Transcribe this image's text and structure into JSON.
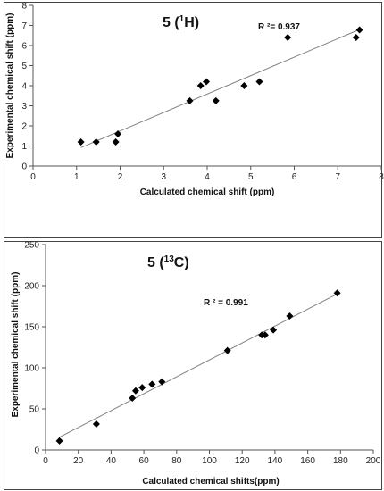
{
  "chart_data": [
    {
      "type": "scatter",
      "title": "5 (¹H)",
      "title_parts": {
        "prefix": "5 (",
        "sup": "1",
        "suffix": "H)"
      },
      "annotation": "R ²= 0.937",
      "xlabel": "Calculated chemical shift (ppm)",
      "ylabel": "Experimental chemical shift (ppm)",
      "xlim": [
        0,
        8
      ],
      "ylim": [
        0,
        8
      ],
      "xticks": [
        0,
        1,
        2,
        3,
        4,
        5,
        6,
        7,
        8
      ],
      "yticks": [
        0,
        1,
        2,
        3,
        4,
        5,
        6,
        7,
        8
      ],
      "marker": "diamond",
      "marker_color": "#000000",
      "trendline": {
        "type": "linear",
        "from": [
          1.1,
          0.92
        ],
        "to": [
          7.5,
          6.8
        ],
        "color": "#808080"
      },
      "points": [
        {
          "x": 1.1,
          "y": 1.2
        },
        {
          "x": 1.45,
          "y": 1.2
        },
        {
          "x": 1.9,
          "y": 1.2
        },
        {
          "x": 1.95,
          "y": 1.6
        },
        {
          "x": 3.6,
          "y": 3.25
        },
        {
          "x": 3.85,
          "y": 4.0
        },
        {
          "x": 3.98,
          "y": 4.2
        },
        {
          "x": 4.2,
          "y": 3.25
        },
        {
          "x": 4.85,
          "y": 4.0
        },
        {
          "x": 5.2,
          "y": 4.2
        },
        {
          "x": 5.85,
          "y": 6.4
        },
        {
          "x": 7.42,
          "y": 6.4
        },
        {
          "x": 7.5,
          "y": 6.78
        }
      ]
    },
    {
      "type": "scatter",
      "title": "5 (¹³C)",
      "title_parts": {
        "prefix": "5 (",
        "sup": "13",
        "suffix": "C)"
      },
      "annotation": "R ² = 0.991",
      "xlabel": "Calculated chemical shifts(ppm)",
      "ylabel": "Experimental chemical shift (ppm)",
      "xlim": [
        0,
        200
      ],
      "ylim": [
        0,
        250
      ],
      "xticks": [
        0,
        20,
        40,
        60,
        80,
        100,
        120,
        140,
        160,
        180,
        200
      ],
      "yticks": [
        0,
        50,
        100,
        150,
        200,
        250
      ],
      "marker": "diamond",
      "marker_color": "#000000",
      "trendline": {
        "type": "linear",
        "from": [
          8,
          15
        ],
        "to": [
          179,
          191
        ],
        "color": "#808080"
      },
      "points": [
        {
          "x": 8.5,
          "y": 11
        },
        {
          "x": 31,
          "y": 31.5
        },
        {
          "x": 53,
          "y": 63
        },
        {
          "x": 55,
          "y": 72
        },
        {
          "x": 59,
          "y": 76
        },
        {
          "x": 65,
          "y": 80
        },
        {
          "x": 71,
          "y": 83
        },
        {
          "x": 111,
          "y": 121
        },
        {
          "x": 132,
          "y": 140
        },
        {
          "x": 134,
          "y": 140
        },
        {
          "x": 139,
          "y": 146
        },
        {
          "x": 149,
          "y": 163
        },
        {
          "x": 178,
          "y": 191
        }
      ]
    }
  ]
}
